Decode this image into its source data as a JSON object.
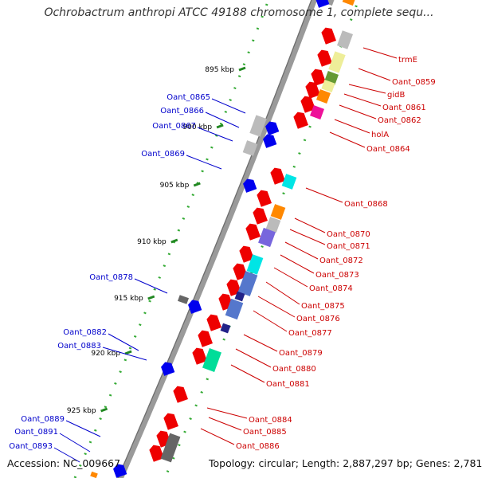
{
  "title": "Ochrobactrum anthropi ATCC 49188 chromosome 1, complete sequ...",
  "footer": {
    "accession": "Accession: NC_009667",
    "summary": "Topology: circular; Length: 2,887,297 bp; Genes: 2,781"
  },
  "colors": {
    "backbone": "#9a9a9a",
    "forward_strand_label": "#0000cc",
    "reverse_strand_label": "#cc0000",
    "tick": "#228822",
    "dots": "#33aa33"
  },
  "ticks": [
    "895 kbp",
    "900 kbp",
    "905 kbp",
    "910 kbp",
    "915 kbp",
    "920 kbp",
    "925 kbp"
  ],
  "blue_labels": [
    "Oant_0865",
    "Oant_0866",
    "Oant_0867",
    "Oant_0869",
    "Oant_0878",
    "Oant_0882",
    "Oant_0883",
    "Oant_0889",
    "Oant_0891",
    "Oant_0893"
  ],
  "red_labels": [
    "trmE",
    "Oant_0859",
    "gidB",
    "Oant_0861",
    "Oant_0862",
    "holA",
    "Oant_0864",
    "Oant_0868",
    "Oant_0870",
    "Oant_0871",
    "Oant_0872",
    "Oant_0873",
    "Oant_0874",
    "Oant_0875",
    "Oant_0876",
    "Oant_0877",
    "Oant_0879",
    "Oant_0880",
    "Oant_0881",
    "Oant_0884",
    "Oant_0885",
    "Oant_0886"
  ]
}
